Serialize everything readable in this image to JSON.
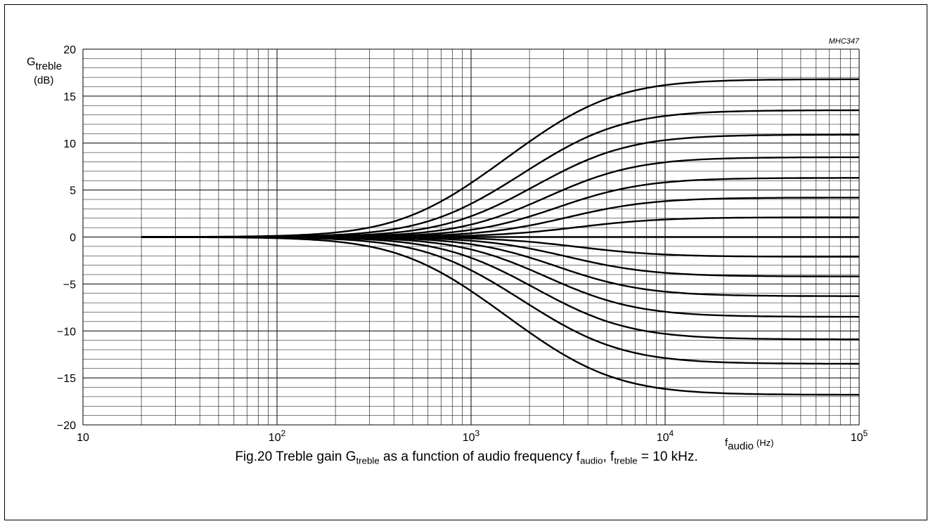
{
  "chart_data": {
    "type": "line",
    "code": "MHC347",
    "x_scale": "log",
    "xlim": [
      10,
      100000
    ],
    "ylim": [
      -20,
      20
    ],
    "grid": true,
    "x_ticks": [
      10,
      100,
      1000,
      10000,
      100000
    ],
    "x_tick_labels": [
      {
        "base": "10",
        "exp": ""
      },
      {
        "base": "10",
        "exp": "2"
      },
      {
        "base": "10",
        "exp": "3"
      },
      {
        "base": "10",
        "exp": "4"
      },
      {
        "base": "10",
        "exp": "5"
      }
    ],
    "y_ticks": [
      20,
      15,
      10,
      5,
      0,
      -5,
      -10,
      -15,
      -20
    ],
    "y_tick_labels": [
      "20",
      "15",
      "10",
      "5",
      "0",
      "−5",
      "−10",
      "−15",
      "−20"
    ],
    "ylabel": {
      "symbol": "G",
      "sub": "treble",
      "unit": "(dB)"
    },
    "xlabel": {
      "symbol": "f",
      "sub": "audio",
      "unit": "(Hz)"
    },
    "curve_model": {
      "corner_hz": 4000,
      "low_hz": 20,
      "high_hz": 100000,
      "step_hz_ratio": 1.05
    },
    "asymptotic_gains_db": [
      16.8,
      13.5,
      10.9,
      8.5,
      6.3,
      4.2,
      2.1,
      0,
      -2.1,
      -4.2,
      -6.3,
      -8.5,
      -10.9,
      -13.5,
      -16.8
    ]
  },
  "caption": {
    "prefix": "Fig.20  Treble gain G",
    "sub1": "treble",
    "middle": " as a function of audio frequency f",
    "sub2": "audio",
    "middle2": ", f",
    "sub3": "treble",
    "suffix": " = 10 kHz."
  }
}
